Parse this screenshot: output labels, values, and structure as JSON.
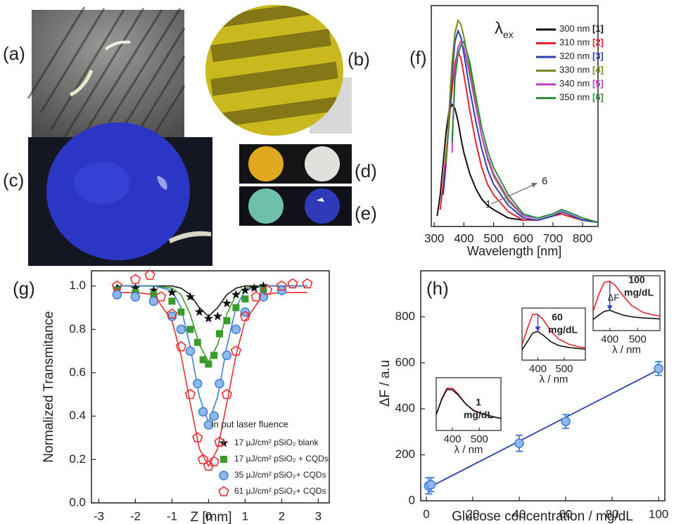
{
  "panels": [
    {
      "label": "(a)"
    },
    {
      "label": "(b)"
    },
    {
      "label": "(c)"
    },
    {
      "label": "(d)"
    },
    {
      "label": "(e)"
    }
  ],
  "chart_data": [
    {
      "type": "line",
      "panel_label": "(f)",
      "x_label": "Wavelength [nm]",
      "xlim": [
        290,
        852
      ],
      "xticks": [
        300,
        400,
        500,
        600,
        700,
        800
      ],
      "ylim": [
        0,
        1.05
      ],
      "legend_title": "λ",
      "legend_title_subscript": "ex",
      "x": [
        310,
        320,
        330,
        340,
        350,
        360,
        370,
        380,
        390,
        400,
        420,
        440,
        460,
        480,
        500,
        550,
        600,
        650,
        700,
        730,
        750,
        800,
        850
      ],
      "series": [
        {
          "name": "300 nm",
          "tag": "[1]",
          "color": "#111111",
          "values": [
            0.05,
            0.15,
            0.3,
            0.45,
            0.55,
            0.58,
            0.56,
            0.5,
            0.42,
            0.35,
            0.25,
            0.18,
            0.13,
            0.1,
            0.08,
            0.04,
            0.03,
            0.03,
            0.05,
            0.06,
            0.05,
            0.03,
            0.02
          ]
        },
        {
          "name": "310 nm",
          "tag": "[2]",
          "color": "#e8202a",
          "values": [
            null,
            0.08,
            0.2,
            0.35,
            0.5,
            0.65,
            0.78,
            0.83,
            0.8,
            0.72,
            0.55,
            0.4,
            0.28,
            0.2,
            0.15,
            0.07,
            0.03,
            0.03,
            0.05,
            0.06,
            0.05,
            0.03,
            0.02
          ]
        },
        {
          "name": "320 nm",
          "tag": "[3]",
          "color": "#2b3fae",
          "values": [
            null,
            null,
            0.15,
            0.3,
            0.5,
            0.72,
            0.88,
            0.93,
            0.9,
            0.82,
            0.65,
            0.5,
            0.37,
            0.27,
            0.2,
            0.1,
            0.04,
            0.03,
            0.05,
            0.07,
            0.06,
            0.03,
            0.02
          ]
        },
        {
          "name": "330 nm",
          "tag": "[4]",
          "color": "#6f8b22",
          "values": [
            null,
            null,
            null,
            0.3,
            0.55,
            0.78,
            0.92,
            0.98,
            0.96,
            0.9,
            0.75,
            0.58,
            0.43,
            0.32,
            0.24,
            0.12,
            0.05,
            0.04,
            0.06,
            0.08,
            0.07,
            0.04,
            0.02
          ]
        },
        {
          "name": "340 nm",
          "tag": "[5]",
          "color": "#c040c0",
          "values": [
            null,
            null,
            null,
            null,
            null,
            0.35,
            0.75,
            0.85,
            0.88,
            0.85,
            0.72,
            0.57,
            0.43,
            0.33,
            0.25,
            0.13,
            0.05,
            0.04,
            0.06,
            0.08,
            0.07,
            0.04,
            0.02
          ]
        },
        {
          "name": "350 nm",
          "tag": "[6]",
          "color": "#2e8b3a",
          "values": [
            null,
            null,
            null,
            null,
            null,
            0.4,
            0.7,
            0.82,
            0.86,
            0.88,
            0.78,
            0.62,
            0.47,
            0.36,
            0.28,
            0.15,
            0.06,
            0.04,
            0.06,
            0.08,
            0.07,
            0.04,
            0.02
          ]
        }
      ],
      "annotations": [
        {
          "text": "1",
          "color": "#111111"
        },
        {
          "text": "6",
          "color": "#2e8b3a"
        }
      ]
    },
    {
      "type": "scatter",
      "panel_label": "(g)",
      "x_label": "Z [mm]",
      "y_label": "Normalized Transmitance",
      "xlim": [
        -3.2,
        3.3
      ],
      "xticks": [
        -3,
        -2,
        -1,
        0,
        1,
        2,
        3
      ],
      "ylim": [
        0,
        1.07
      ],
      "yticks": [
        {
          "value": 0,
          "label": "0.0"
        },
        0.2,
        0.4,
        0.6,
        0.8,
        {
          "value": 1,
          "label": "1.0"
        }
      ],
      "legend_title": "In put laser fluence",
      "fit_x": [
        -2.5,
        -2,
        -1.5,
        -1,
        -0.75,
        -0.5,
        -0.25,
        0,
        0.25,
        0.5,
        0.75,
        1,
        1.5,
        2,
        2.5,
        2.7
      ],
      "series": [
        {
          "name": "17 µJ/cm² pSiO₂ blank",
          "color": "#111111",
          "marker": "star",
          "x": [
            -2.5,
            -2,
            -1.5,
            -1,
            -0.5,
            -0.25,
            0,
            0.25,
            0.5,
            0.75,
            1,
            1.25,
            1.5
          ],
          "values": [
            0.99,
            0.99,
            0.98,
            0.97,
            0.95,
            0.88,
            0.85,
            0.86,
            0.92,
            0.96,
            0.98,
            0.99,
            1.0
          ],
          "fit_values": [
            1,
            1,
            1,
            1,
            0.99,
            0.96,
            0.9,
            0.86,
            0.9,
            0.96,
            0.99,
            1,
            1,
            1,
            1,
            1
          ]
        },
        {
          "name": "17 µJ/cm² pSiO₂ + CQDs",
          "color": "#3a9a2a",
          "marker": "square",
          "x": [
            -2.5,
            -2,
            -1.5,
            -1,
            -0.75,
            -0.5,
            -0.3,
            -0.15,
            0,
            0.15,
            0.3,
            0.5,
            0.75,
            1,
            1.5
          ],
          "values": [
            0.98,
            0.97,
            0.96,
            0.93,
            0.88,
            0.8,
            0.74,
            0.66,
            0.64,
            0.68,
            0.78,
            0.84,
            0.9,
            0.94,
            0.98
          ],
          "fit_values": [
            1,
            1,
            1,
            0.99,
            0.96,
            0.87,
            0.73,
            0.65,
            0.73,
            0.87,
            0.96,
            0.99,
            1,
            1,
            1,
            1
          ]
        },
        {
          "name": "35 µJ/cm² pSiO₂+ CQDs",
          "color": "#3d7fd6",
          "marker": "circle",
          "x": [
            -2.5,
            -2,
            -1.5,
            -1,
            -0.75,
            -0.5,
            -0.3,
            -0.15,
            0,
            0.15,
            0.3,
            0.5,
            0.75,
            1,
            1.5,
            2
          ],
          "values": [
            0.96,
            0.95,
            0.93,
            0.86,
            0.8,
            0.7,
            0.55,
            0.42,
            0.36,
            0.4,
            0.55,
            0.68,
            0.8,
            0.88,
            0.95,
            0.98
          ],
          "fit_values": [
            1,
            1,
            1,
            0.98,
            0.9,
            0.72,
            0.49,
            0.37,
            0.49,
            0.72,
            0.9,
            0.98,
            1,
            1,
            1,
            1
          ]
        },
        {
          "name": "61 µJ/cm² pSiO₂+ CQDs",
          "color": "#e83030",
          "marker": "pentagon",
          "x": [
            -2.5,
            -2,
            -1.6,
            -1.3,
            -1,
            -0.75,
            -0.5,
            -0.3,
            -0.15,
            0,
            0.15,
            0.3,
            0.5,
            0.75,
            1,
            1.3,
            1.6,
            2,
            2.3,
            2.7
          ],
          "values": [
            1.0,
            1.03,
            1.05,
            0.95,
            0.87,
            0.72,
            0.5,
            0.3,
            0.2,
            0.17,
            0.19,
            0.28,
            0.5,
            0.7,
            0.86,
            0.95,
            0.98,
            1.0,
            1.01,
            1.01
          ],
          "fit_values": [
            0.97,
            0.97,
            0.96,
            0.84,
            0.68,
            0.46,
            0.25,
            0.17,
            0.25,
            0.46,
            0.68,
            0.84,
            0.96,
            0.97,
            0.97,
            0.97
          ]
        }
      ]
    },
    {
      "type": "scatter",
      "panel_label": "(h)",
      "x_label": "Glucose concentration / mg/dL",
      "y_label": "ΔF / a.u",
      "xlim": [
        -2.4,
        102.7
      ],
      "xticks": [
        0,
        20,
        40,
        60,
        80,
        100
      ],
      "ylim": [
        0,
        1000
      ],
      "yticks": [
        0,
        200,
        400,
        600,
        800
      ],
      "series": [
        {
          "color": "#3d7fd6",
          "marker": "circle",
          "x": [
            1,
            2,
            40,
            60,
            100
          ],
          "values": [
            65,
            70,
            250,
            345,
            575
          ],
          "errors": [
            35,
            30,
            35,
            30,
            30
          ]
        }
      ],
      "fit": {
        "color": "#2b3fae",
        "x": [
          0,
          100
        ],
        "values": [
          52,
          570
        ]
      },
      "insets": [
        {
          "label_lines": [
            "1",
            "mg/dL"
          ],
          "x_label": "λ / nm",
          "xlim": [
            340,
            580
          ],
          "xticks": [
            400,
            500
          ],
          "ylim": [
            0,
            1
          ],
          "x": [
            340,
            360,
            380,
            400,
            420,
            450,
            480,
            520,
            560,
            580
          ],
          "series": [
            {
              "color": "#e8202a",
              "values": [
                0.3,
                0.6,
                0.8,
                0.8,
                0.7,
                0.5,
                0.38,
                0.3,
                0.25,
                0.23
              ]
            },
            {
              "color": "#111111",
              "values": [
                0.3,
                0.58,
                0.78,
                0.77,
                0.68,
                0.5,
                0.37,
                0.3,
                0.25,
                0.23
              ]
            }
          ]
        },
        {
          "label_lines": [
            "60",
            "mg/dL"
          ],
          "x_label": "λ / nm",
          "xlim": [
            340,
            580
          ],
          "xticks": [
            400,
            500
          ],
          "ylim": [
            0,
            1
          ],
          "x": [
            340,
            360,
            380,
            400,
            420,
            450,
            480,
            520,
            560,
            580
          ],
          "series": [
            {
              "color": "#e8202a",
              "values": [
                0.3,
                0.6,
                0.88,
                0.88,
                0.78,
                0.55,
                0.4,
                0.3,
                0.25,
                0.24
              ]
            },
            {
              "color": "#111111",
              "values": [
                0.2,
                0.35,
                0.52,
                0.55,
                0.48,
                0.35,
                0.28,
                0.24,
                0.22,
                0.21
              ]
            }
          ]
        },
        {
          "label_lines": [
            "100",
            "mg/dL"
          ],
          "annotation": "ΔF",
          "x_label": "λ / nm",
          "xlim": [
            340,
            580
          ],
          "xticks": [
            400,
            500
          ],
          "ylim": [
            0,
            1
          ],
          "x": [
            340,
            360,
            380,
            400,
            420,
            450,
            480,
            520,
            560,
            580
          ],
          "series": [
            {
              "color": "#e8202a",
              "values": [
                0.35,
                0.65,
                0.88,
                0.9,
                0.82,
                0.62,
                0.45,
                0.33,
                0.28,
                0.27
              ]
            },
            {
              "color": "#111111",
              "values": [
                0.2,
                0.28,
                0.35,
                0.37,
                0.33,
                0.28,
                0.25,
                0.23,
                0.22,
                0.21
              ]
            }
          ]
        }
      ]
    }
  ]
}
